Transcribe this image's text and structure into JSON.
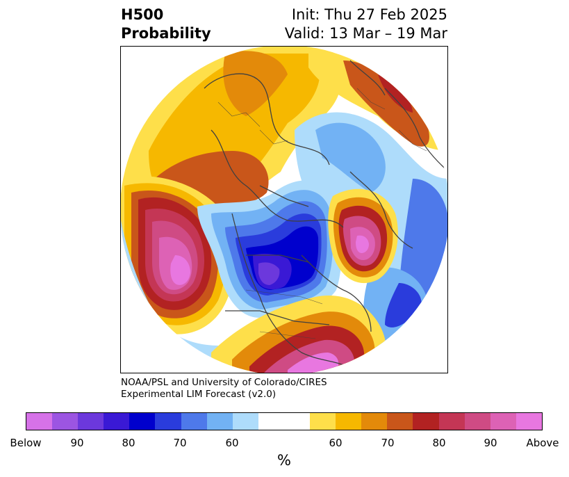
{
  "header": {
    "title_line1": "H500",
    "title_line2": "Probability",
    "init": "Init: Thu 27 Feb 2025",
    "valid": "Valid: 13 Mar – 19 Mar"
  },
  "credit": {
    "line1": "NOAA/PSL and University of Colorado/CIRES",
    "line2": "Experimental LIM Forecast (v2.0)"
  },
  "colorbar": {
    "unit": "%",
    "colors": [
      "#d672e8",
      "#9c55e2",
      "#6c38dc",
      "#3a19d5",
      "#0000cd",
      "#2a3cdc",
      "#4e79ea",
      "#72b2f4",
      "#aedcfb",
      "#ffffff",
      "#ffffff",
      "#fedf4a",
      "#f6b800",
      "#e38a0a",
      "#c9561a",
      "#b22222",
      "#c43655",
      "#cf4b84",
      "#dd62b5",
      "#e877e0"
    ],
    "tick_labels": [
      "Below",
      "90",
      "80",
      "70",
      "60",
      "60",
      "70",
      "80",
      "90",
      "Above"
    ]
  },
  "map": {
    "colors": {
      "above_high": "#e877e0",
      "above_90": "#dd62b5",
      "above_85": "#cf4b84",
      "above_80": "#c43655",
      "above_75": "#b22222",
      "above_70": "#c9561a",
      "above_65": "#e38a0a",
      "above_60": "#f6b800",
      "above_55": "#fedf4a",
      "below_55": "#aedcfb",
      "below_60": "#72b2f4",
      "below_65": "#4e79ea",
      "below_70": "#2a3cdc",
      "below_75": "#0000cd",
      "below_80": "#3a19d5",
      "coastline": "#404040"
    }
  }
}
